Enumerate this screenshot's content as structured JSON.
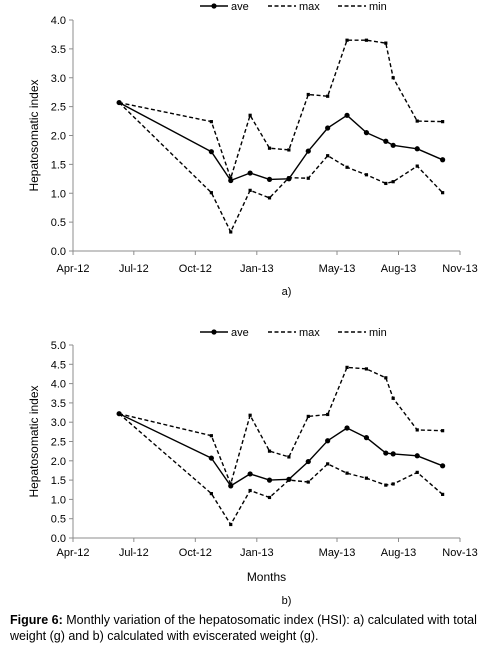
{
  "caption": {
    "label": "Figure 6:",
    "text": " Monthly variation of the hepatosomatic index (HSI): a) calculated with total weight (g) and b) calculated with eviscerated weight (g)."
  },
  "chart_data": [
    {
      "type": "line",
      "panel_label": "a)",
      "xlabel": "",
      "ylabel": "Hepatosomatic index",
      "xlim": [
        "2012-04-01",
        "2013-11-01"
      ],
      "ylim": [
        0,
        4
      ],
      "x_ticks": [
        "2012-04-01",
        "2012-07-01",
        "2012-10-01",
        "2013-01-01",
        "2013-05-01",
        "2013-08-01",
        "2013-11-01"
      ],
      "x_tick_labels": [
        "Apr-12",
        "Jul-12",
        "Oct-12",
        "Jan-13",
        "May-13",
        "Aug-13",
        "Nov-13"
      ],
      "y_ticks": [
        0,
        0.5,
        1,
        1.5,
        2,
        2.5,
        3,
        3.5,
        4
      ],
      "y_tick_labels": [
        "0.0",
        "0.5",
        "1.0",
        "1.5",
        "2.0",
        "2.5",
        "3.0",
        "3.5",
        "4.0"
      ],
      "grid": false,
      "legend": "top",
      "x": [
        "2012-06-09",
        "2012-10-25",
        "2012-11-23",
        "2012-12-22",
        "2013-01-20",
        "2013-02-18",
        "2013-03-19",
        "2013-04-17",
        "2013-05-16",
        "2013-06-14",
        "2013-07-13",
        "2013-07-24",
        "2013-08-29",
        "2013-10-06"
      ],
      "series": [
        {
          "name": "ave",
          "style": "solid-markers",
          "color": "#000000",
          "values": [
            2.57,
            1.72,
            1.22,
            1.35,
            1.24,
            1.25,
            1.73,
            2.13,
            2.35,
            2.05,
            1.9,
            1.83,
            1.77,
            1.58
          ]
        },
        {
          "name": "max",
          "style": "dashed",
          "color": "#000000",
          "values": [
            2.57,
            2.24,
            1.26,
            2.35,
            1.78,
            1.75,
            2.71,
            2.68,
            3.65,
            3.65,
            3.6,
            3.0,
            2.25,
            2.24
          ]
        },
        {
          "name": "min",
          "style": "dashed",
          "color": "#000000",
          "values": [
            2.57,
            1.01,
            0.33,
            1.05,
            0.92,
            1.27,
            1.26,
            1.65,
            1.45,
            1.32,
            1.17,
            1.2,
            1.47,
            1.01
          ]
        }
      ]
    },
    {
      "type": "line",
      "panel_label": "b)",
      "xlabel": "Months",
      "ylabel": "Hepatosomatic index",
      "xlim": [
        "2012-04-01",
        "2013-11-01"
      ],
      "ylim": [
        0,
        5
      ],
      "x_ticks": [
        "2012-04-01",
        "2012-07-01",
        "2012-10-01",
        "2013-01-01",
        "2013-05-01",
        "2013-08-01",
        "2013-11-01"
      ],
      "x_tick_labels": [
        "Apr-12",
        "Jul-12",
        "Oct-12",
        "Jan-13",
        "May-13",
        "Aug-13",
        "Nov-13"
      ],
      "y_ticks": [
        0,
        0.5,
        1,
        1.5,
        2,
        2.5,
        3,
        3.5,
        4,
        4.5,
        5
      ],
      "y_tick_labels": [
        "0.0",
        "0.5",
        "1.0",
        "1.5",
        "2.0",
        "2.5",
        "3.0",
        "3.5",
        "4.0",
        "4.5",
        "5.0"
      ],
      "grid": false,
      "legend": "top",
      "x": [
        "2012-06-09",
        "2012-10-25",
        "2012-11-23",
        "2012-12-22",
        "2013-01-20",
        "2013-02-18",
        "2013-03-19",
        "2013-04-17",
        "2013-05-16",
        "2013-06-14",
        "2013-07-13",
        "2013-07-24",
        "2013-08-29",
        "2013-10-06"
      ],
      "series": [
        {
          "name": "ave",
          "style": "solid-markers",
          "color": "#000000",
          "values": [
            3.22,
            2.07,
            1.35,
            1.66,
            1.5,
            1.52,
            1.98,
            2.52,
            2.85,
            2.6,
            2.2,
            2.18,
            2.13,
            1.87
          ]
        },
        {
          "name": "max",
          "style": "dashed",
          "color": "#000000",
          "values": [
            3.22,
            2.65,
            1.4,
            3.18,
            2.25,
            2.1,
            3.15,
            3.2,
            4.42,
            4.38,
            4.15,
            3.62,
            2.8,
            2.78
          ]
        },
        {
          "name": "min",
          "style": "dashed",
          "color": "#000000",
          "values": [
            3.22,
            1.15,
            0.35,
            1.23,
            1.05,
            1.5,
            1.45,
            1.92,
            1.68,
            1.55,
            1.37,
            1.4,
            1.7,
            1.13
          ]
        }
      ]
    }
  ]
}
